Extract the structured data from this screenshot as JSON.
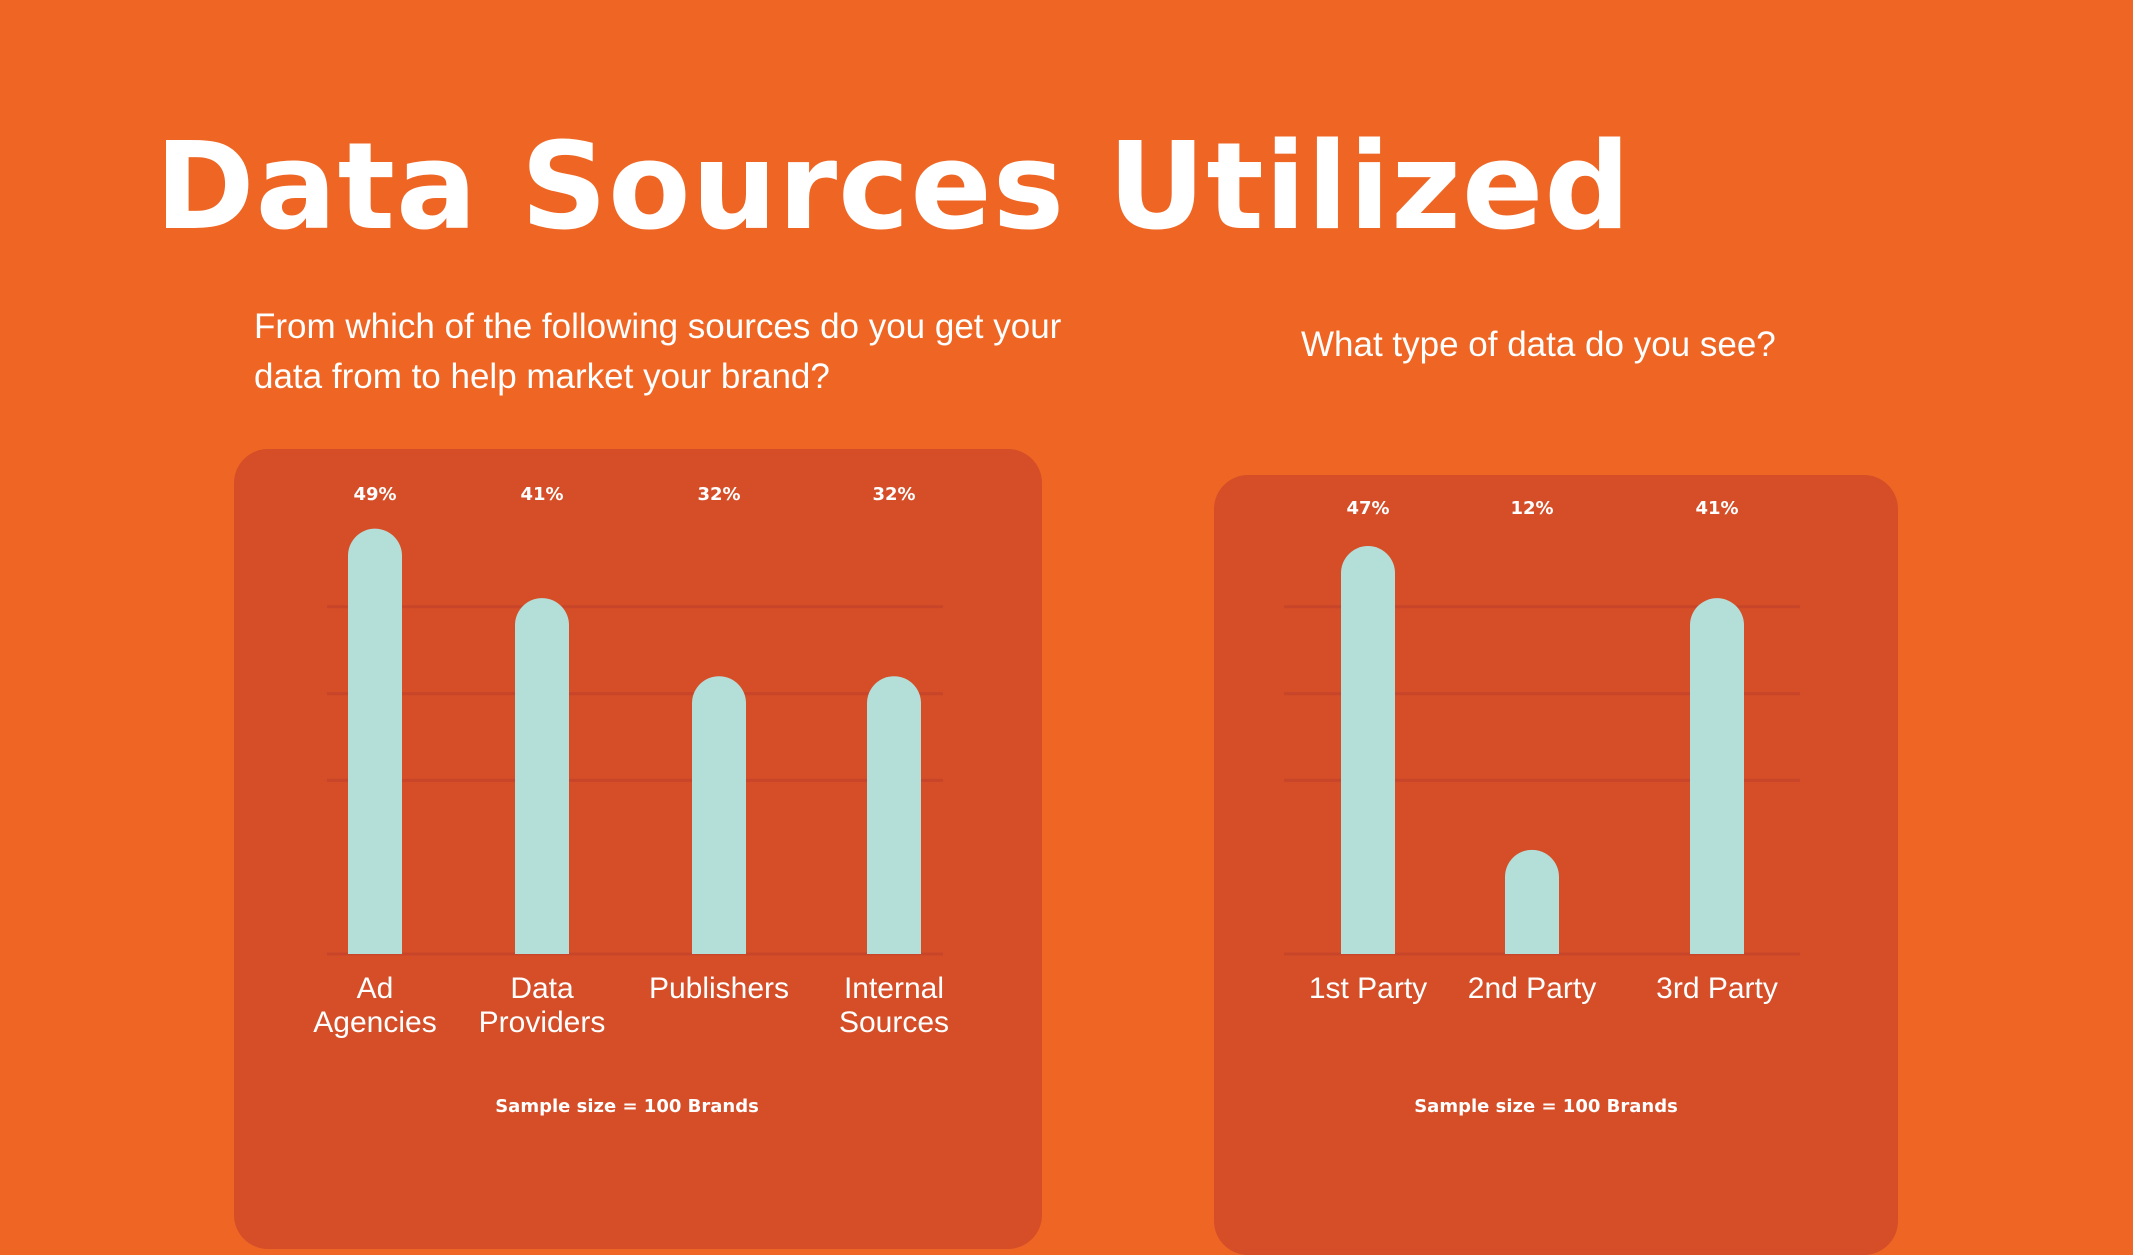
{
  "page": {
    "title": "Data Sources Utilized"
  },
  "colors": {
    "background": "#EF6624",
    "panel": "#D54E28",
    "bar": "#B4DED8",
    "gridline": "#C8452A",
    "text": "#FFFFFF"
  },
  "chart_data": [
    {
      "type": "bar",
      "title": "From which of the following sources do you get your data from to help market your brand?",
      "categories": [
        "Ad\nAgencies",
        "Data\nProviders",
        "Publishers",
        "Internal\nSources"
      ],
      "values": [
        49,
        41,
        32,
        32
      ],
      "value_labels": [
        "49%",
        "41%",
        "32%",
        "32%"
      ],
      "unit": "%",
      "ylim": [
        0,
        50
      ],
      "grid": true,
      "footnote": "Sample size = 100 Brands"
    },
    {
      "type": "bar",
      "title": "What type of data do you see?",
      "categories": [
        "1st Party",
        "2nd Party",
        "3rd Party"
      ],
      "values": [
        47,
        12,
        41
      ],
      "value_labels": [
        "47%",
        "12%",
        "41%"
      ],
      "unit": "%",
      "ylim": [
        0,
        50
      ],
      "grid": true,
      "footnote": "Sample size = 100 Brands"
    }
  ]
}
